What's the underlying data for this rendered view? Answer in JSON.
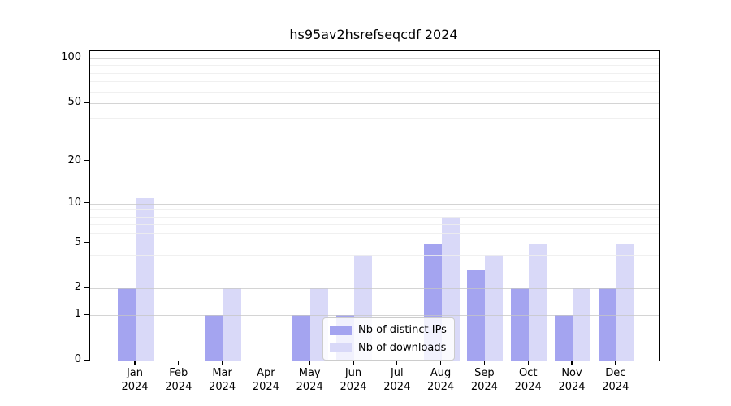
{
  "title": "hs95av2hsrefseqcdf 2024",
  "colors": {
    "bar_distinct_ips": "#a4a4f0",
    "bar_downloads": "#d9d9f8",
    "grid_major": "#c6c6c6",
    "grid_minor": "#ededed",
    "spine": "#000000",
    "background": "#ffffff"
  },
  "legend": {
    "entries": [
      {
        "label": "Nb of distinct IPs",
        "series_key": "distinct_ips"
      },
      {
        "label": "Nb of downloads",
        "series_key": "downloads"
      }
    ]
  },
  "chart_data": {
    "type": "bar",
    "title": "hs95av2hsrefseqcdf 2024",
    "year": "2024",
    "months": [
      "Jan",
      "Feb",
      "Mar",
      "Apr",
      "May",
      "Jun",
      "Jul",
      "Aug",
      "Sep",
      "Oct",
      "Nov",
      "Dec"
    ],
    "categories": [
      "Jan 2024",
      "Feb 2024",
      "Mar 2024",
      "Apr 2024",
      "May 2024",
      "Jun 2024",
      "Jul 2024",
      "Aug 2024",
      "Sep 2024",
      "Oct 2024",
      "Nov 2024",
      "Dec 2024"
    ],
    "series": [
      {
        "name": "Nb of distinct IPs",
        "color": "#a4a4f0",
        "values": [
          2,
          0,
          1,
          0,
          1,
          1,
          0,
          5,
          3,
          2,
          1,
          2
        ]
      },
      {
        "name": "Nb of downloads",
        "color": "#d9d9f8",
        "values": [
          11,
          0,
          2,
          0,
          2,
          4,
          0,
          8,
          4,
          5,
          2,
          5
        ]
      }
    ],
    "xlabel": "",
    "ylabel": "",
    "yscale": "log10(1+y)",
    "ylim": [
      0,
      112
    ],
    "yticks": [
      0,
      1,
      2,
      5,
      10,
      20,
      50,
      100
    ],
    "yticks_minor": [
      3,
      4,
      6,
      7,
      8,
      9,
      30,
      40,
      60,
      70,
      80,
      90
    ],
    "grid": "horizontal, drawn over bars",
    "legend_position": "inside lower-center"
  }
}
